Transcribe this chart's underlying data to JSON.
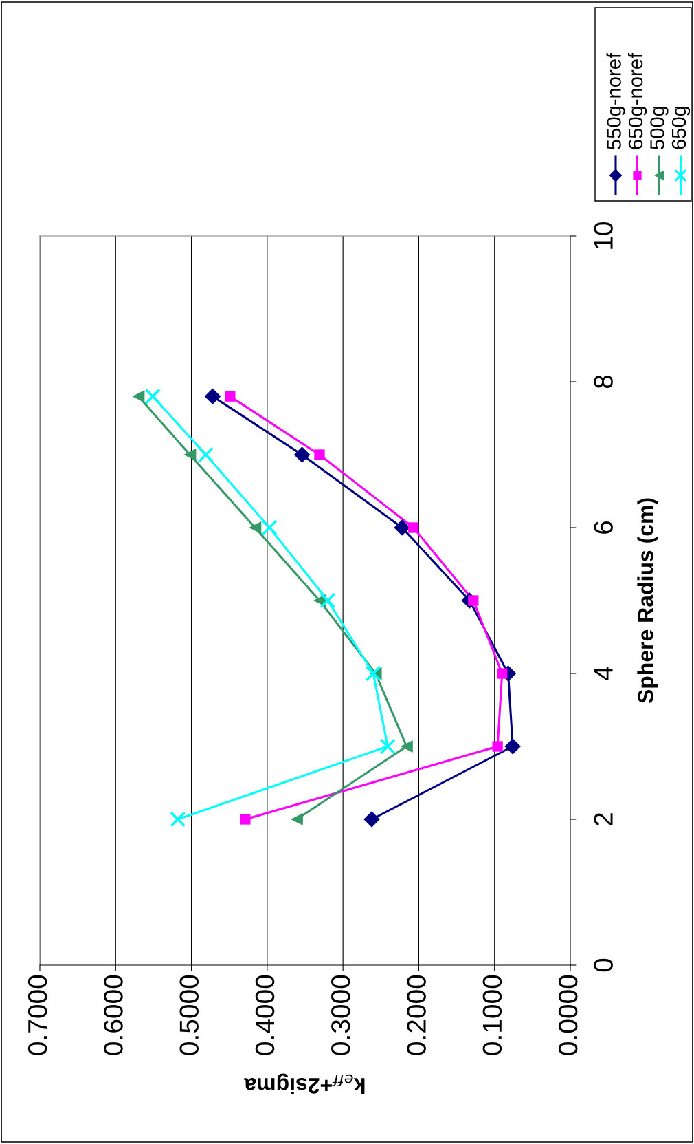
{
  "chart_data": {
    "type": "line",
    "xlabel": "k$_{eff}$+2sigma",
    "ylabel": "Sphere Radius (cm)",
    "xlim": [
      0.7,
      0
    ],
    "xticks": [
      {
        "value": 0.7,
        "label": "0.7000"
      },
      {
        "value": 0.6,
        "label": "0.6000"
      },
      {
        "value": 0.5,
        "label": "0.5000"
      },
      {
        "value": 0.4,
        "label": "0.4000"
      },
      {
        "value": 0.3,
        "label": "0.3000"
      },
      {
        "value": 0.2,
        "label": "0.2000"
      },
      {
        "value": 0.1,
        "label": "0.1000"
      },
      {
        "value": 0,
        "label": "0.0000"
      }
    ],
    "ylim": [
      0,
      10
    ],
    "yticks": [
      0,
      2,
      4,
      6,
      8,
      10
    ],
    "grid": "x",
    "legend": "right",
    "line_style": "solid",
    "series": [
      {
        "name": "550g-noref",
        "color": "#000080",
        "marker": "diamond",
        "x": [
          0.262,
          0.076,
          0.082,
          0.133,
          0.222,
          0.354,
          0.472
        ],
        "values": [
          2,
          3,
          4,
          5,
          6,
          7,
          7.8
        ]
      },
      {
        "name": "650g-noref",
        "color": "#ff00ff",
        "marker": "square",
        "x": [
          0.429,
          0.096,
          0.09,
          0.128,
          0.207,
          0.331,
          0.449
        ],
        "values": [
          2,
          3,
          4,
          5,
          6,
          7,
          7.8
        ]
      },
      {
        "name": "500g",
        "color": "#339966",
        "marker": "triangle",
        "x": [
          0.361,
          0.216,
          0.257,
          0.331,
          0.416,
          0.502,
          0.57
        ],
        "values": [
          2,
          3,
          4,
          5,
          6,
          7,
          7.8
        ]
      },
      {
        "name": "650g",
        "color": "#00ffff",
        "marker": "cross",
        "x": [
          0.518,
          0.241,
          0.26,
          0.32,
          0.397,
          0.481,
          0.551
        ],
        "values": [
          2,
          3,
          4,
          5,
          6,
          7,
          7.8
        ]
      }
    ]
  }
}
